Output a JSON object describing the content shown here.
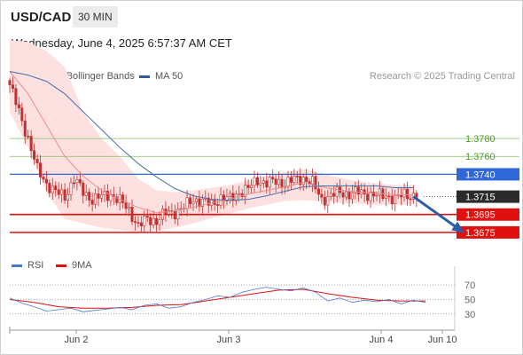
{
  "header": {
    "pair": "USD/CAD",
    "timeframe": "30 MIN",
    "datetime": "Wednesday, June 4, 2025 6:57:37 AM CET"
  },
  "legend": {
    "ma20_label": "MA 20 + Bollinger Bands",
    "ma50_label": "MA 50",
    "credit": "Research © 2025 Trading Central",
    "rsi_label": "RSI",
    "rsi_ma_label": "9MA"
  },
  "colors": {
    "ma20": "#f08a8a",
    "bollinger_fill": "#fde0e0",
    "ma50": "#4a6fa8",
    "candle": "#c03030",
    "resistance": "#7fbf5f",
    "pivot": "#2f67d8",
    "support": "#e01010",
    "current": "#2a2a2a",
    "rsi": "#4a78d0",
    "rsi_ma": "#e01010",
    "arrow": "#2b5ea8"
  },
  "chart_data": [
    {
      "type": "candlestick",
      "title": "USD/CAD",
      "x_tick_labels": [
        "Jun 2",
        "Jun 3",
        "Jun 4",
        "Jun 10"
      ],
      "ylim": [
        1.366,
        1.3905
      ],
      "overlays": [
        "MA 20 + Bollinger Bands",
        "MA 50"
      ],
      "levels": [
        {
          "value": 1.378,
          "label": "1.3780",
          "kind": "resistance"
        },
        {
          "value": 1.376,
          "label": "1.3760",
          "kind": "resistance"
        },
        {
          "value": 1.374,
          "label": "1.3740",
          "kind": "pivot"
        },
        {
          "value": 1.3715,
          "label": "1.3715",
          "kind": "current"
        },
        {
          "value": 1.3695,
          "label": "1.3695",
          "kind": "support"
        },
        {
          "value": 1.3675,
          "label": "1.3675",
          "kind": "support"
        }
      ],
      "close_path": [
        [
          0,
          1.384
        ],
        [
          3,
          1.381
        ],
        [
          6,
          1.378
        ],
        [
          9,
          1.3745
        ],
        [
          12,
          1.373
        ],
        [
          15,
          1.372
        ],
        [
          18,
          1.3715
        ],
        [
          21,
          1.3735
        ],
        [
          24,
          1.372
        ],
        [
          27,
          1.3712
        ],
        [
          30,
          1.3715
        ],
        [
          33,
          1.3718
        ],
        [
          36,
          1.371
        ],
        [
          39,
          1.37
        ],
        [
          42,
          1.3682
        ],
        [
          45,
          1.369
        ],
        [
          48,
          1.3688
        ],
        [
          51,
          1.3697
        ],
        [
          54,
          1.3698
        ],
        [
          57,
          1.3703
        ],
        [
          60,
          1.3712
        ],
        [
          63,
          1.371
        ],
        [
          66,
          1.3706
        ],
        [
          69,
          1.3714
        ],
        [
          72,
          1.3712
        ],
        [
          75,
          1.372
        ],
        [
          78,
          1.3724
        ],
        [
          81,
          1.3734
        ],
        [
          84,
          1.373
        ],
        [
          87,
          1.3732
        ],
        [
          90,
          1.373
        ],
        [
          93,
          1.3734
        ],
        [
          96,
          1.3736
        ],
        [
          99,
          1.373
        ],
        [
          102,
          1.3712
        ],
        [
          105,
          1.3716
        ],
        [
          108,
          1.372
        ],
        [
          111,
          1.3718
        ],
        [
          114,
          1.372
        ],
        [
          117,
          1.3718
        ],
        [
          120,
          1.3716
        ],
        [
          123,
          1.3717
        ],
        [
          126,
          1.3712
        ],
        [
          129,
          1.3718
        ],
        [
          132,
          1.3716
        ]
      ],
      "ma20": [
        [
          0,
          1.3855
        ],
        [
          6,
          1.383
        ],
        [
          12,
          1.3795
        ],
        [
          18,
          1.376
        ],
        [
          24,
          1.3738
        ],
        [
          30,
          1.3722
        ],
        [
          36,
          1.3712
        ],
        [
          42,
          1.3703
        ],
        [
          48,
          1.3697
        ],
        [
          54,
          1.3699
        ],
        [
          60,
          1.3703
        ],
        [
          66,
          1.3708
        ],
        [
          72,
          1.3712
        ],
        [
          78,
          1.3718
        ],
        [
          84,
          1.3722
        ],
        [
          90,
          1.3726
        ],
        [
          96,
          1.3731
        ],
        [
          102,
          1.3726
        ],
        [
          108,
          1.3722
        ],
        [
          114,
          1.372
        ],
        [
          120,
          1.3719
        ],
        [
          126,
          1.3717
        ],
        [
          132,
          1.3717
        ]
      ],
      "ma50": [
        [
          0,
          1.3855
        ],
        [
          6,
          1.3851
        ],
        [
          12,
          1.3844
        ],
        [
          18,
          1.383
        ],
        [
          24,
          1.381
        ],
        [
          30,
          1.379
        ],
        [
          36,
          1.377
        ],
        [
          42,
          1.3752
        ],
        [
          48,
          1.3737
        ],
        [
          54,
          1.3724
        ],
        [
          60,
          1.3716
        ],
        [
          66,
          1.3712
        ],
        [
          72,
          1.3711
        ],
        [
          78,
          1.3712
        ],
        [
          84,
          1.3716
        ],
        [
          90,
          1.3721
        ],
        [
          96,
          1.3726
        ],
        [
          102,
          1.3727
        ],
        [
          108,
          1.3727
        ],
        [
          114,
          1.3727
        ],
        [
          120,
          1.3727
        ],
        [
          126,
          1.3725
        ],
        [
          132,
          1.3725
        ]
      ],
      "bollinger_upper": [
        [
          0,
          1.389
        ],
        [
          6,
          1.3888
        ],
        [
          12,
          1.3878
        ],
        [
          18,
          1.386
        ],
        [
          24,
          1.381
        ],
        [
          30,
          1.378
        ],
        [
          36,
          1.376
        ],
        [
          42,
          1.3735
        ],
        [
          48,
          1.3722
        ],
        [
          54,
          1.372
        ],
        [
          60,
          1.3722
        ],
        [
          66,
          1.3725
        ],
        [
          72,
          1.3728
        ],
        [
          78,
          1.3733
        ],
        [
          84,
          1.3738
        ],
        [
          90,
          1.3742
        ],
        [
          96,
          1.3746
        ],
        [
          102,
          1.3741
        ],
        [
          108,
          1.3736
        ],
        [
          114,
          1.3732
        ],
        [
          120,
          1.373
        ],
        [
          126,
          1.3728
        ],
        [
          132,
          1.3728
        ]
      ],
      "bollinger_lower": [
        [
          0,
          1.381
        ],
        [
          6,
          1.377
        ],
        [
          12,
          1.372
        ],
        [
          18,
          1.369
        ],
        [
          24,
          1.3685
        ],
        [
          30,
          1.368
        ],
        [
          36,
          1.3678
        ],
        [
          42,
          1.3675
        ],
        [
          48,
          1.3677
        ],
        [
          54,
          1.368
        ],
        [
          60,
          1.3685
        ],
        [
          66,
          1.3691
        ],
        [
          72,
          1.3696
        ],
        [
          78,
          1.3702
        ],
        [
          84,
          1.3706
        ],
        [
          90,
          1.371
        ],
        [
          96,
          1.3711
        ],
        [
          102,
          1.371
        ],
        [
          108,
          1.3708
        ],
        [
          114,
          1.3707
        ],
        [
          120,
          1.3706
        ],
        [
          126,
          1.3706
        ],
        [
          132,
          1.3706
        ]
      ],
      "forecast_arrow": {
        "from": [
          132,
          1.3715
        ],
        "to": [
          148,
          1.3676
        ]
      }
    },
    {
      "type": "line",
      "title": "RSI",
      "y_tick_labels": [
        "70",
        "50",
        "30"
      ],
      "ylim": [
        15,
        80
      ],
      "series": [
        {
          "name": "RSI",
          "values": [
            [
              0,
              52
            ],
            [
              4,
              45
            ],
            [
              8,
              40
            ],
            [
              12,
              34
            ],
            [
              16,
              36
            ],
            [
              20,
              38
            ],
            [
              24,
              33
            ],
            [
              28,
              35
            ],
            [
              32,
              37
            ],
            [
              36,
              39
            ],
            [
              40,
              36
            ],
            [
              44,
              42
            ],
            [
              48,
              44
            ],
            [
              52,
              38
            ],
            [
              56,
              40
            ],
            [
              60,
              46
            ],
            [
              64,
              50
            ],
            [
              68,
              55
            ],
            [
              72,
              53
            ],
            [
              76,
              60
            ],
            [
              80,
              64
            ],
            [
              84,
              67
            ],
            [
              88,
              64
            ],
            [
              92,
              62
            ],
            [
              96,
              66
            ],
            [
              100,
              60
            ],
            [
              104,
              48
            ],
            [
              108,
              52
            ],
            [
              112,
              46
            ],
            [
              116,
              49
            ],
            [
              120,
              47
            ],
            [
              124,
              50
            ],
            [
              128,
              44
            ],
            [
              132,
              49
            ],
            [
              136,
              46
            ]
          ]
        },
        {
          "name": "9MA",
          "values": [
            [
              0,
              50
            ],
            [
              8,
              46
            ],
            [
              16,
              40
            ],
            [
              24,
              38
            ],
            [
              32,
              38
            ],
            [
              40,
              39
            ],
            [
              48,
              42
            ],
            [
              56,
              43
            ],
            [
              64,
              48
            ],
            [
              72,
              53
            ],
            [
              80,
              58
            ],
            [
              88,
              63
            ],
            [
              96,
              64
            ],
            [
              104,
              58
            ],
            [
              112,
              53
            ],
            [
              120,
              49
            ],
            [
              128,
              48
            ],
            [
              136,
              48
            ]
          ]
        }
      ]
    }
  ]
}
